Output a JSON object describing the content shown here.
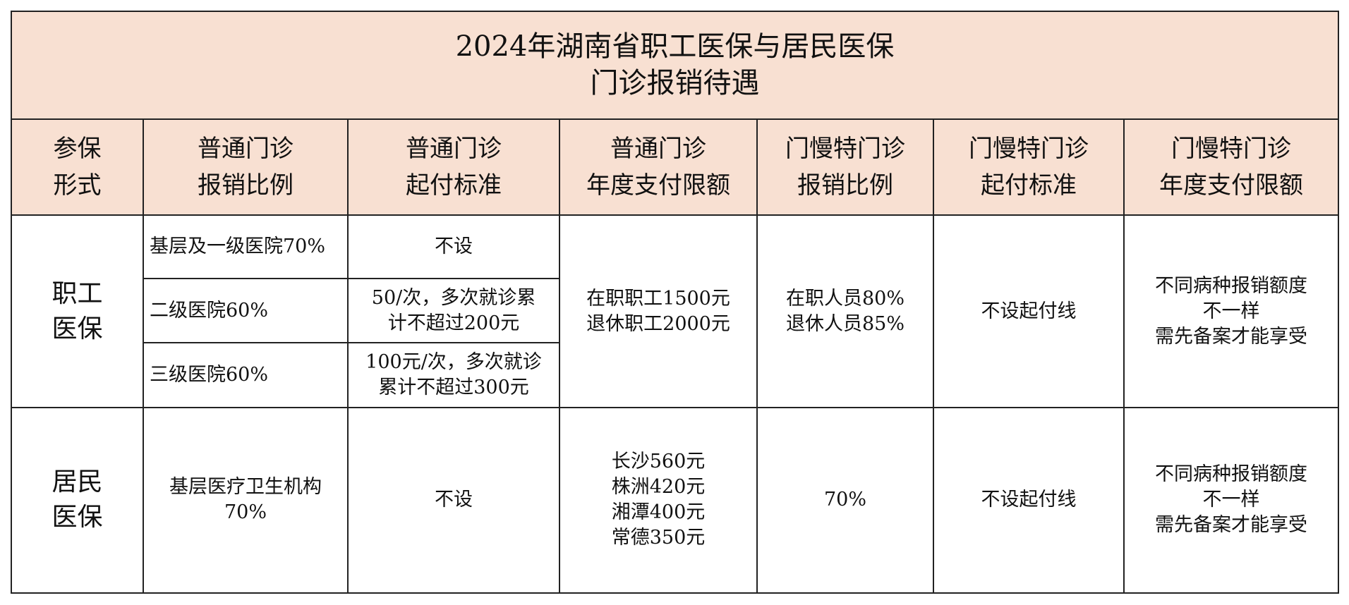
{
  "title": {
    "line1": "2024年湖南省职工医保与居民医保",
    "line2": "门诊报销待遇"
  },
  "headers": [
    [
      "参保",
      "形式"
    ],
    [
      "普通门诊",
      "报销比例"
    ],
    [
      "普通门诊",
      "起付标准"
    ],
    [
      "普通门诊",
      "年度支付限额"
    ],
    [
      "门慢特门诊",
      "报销比例"
    ],
    [
      "门慢特门诊",
      "起付标准"
    ],
    [
      "门慢特门诊",
      "年度支付限额"
    ]
  ],
  "employee": {
    "label": [
      "职工",
      "医保"
    ],
    "rows": [
      {
        "ratio": "基层及一级医院70%",
        "threshold": [
          "不设"
        ]
      },
      {
        "ratio": "二级医院60%",
        "threshold": [
          "50/次，多次就诊累",
          "计不超过200元"
        ]
      },
      {
        "ratio": "三级医院60%",
        "threshold": [
          "100元/次，多次就诊",
          "累计不超过300元"
        ]
      }
    ],
    "annual_limit": [
      "在职职工1500元",
      "退休职工2000元"
    ],
    "chronic_ratio": [
      "在职人员80%",
      "退休人员85%"
    ],
    "chronic_threshold": "不设起付线",
    "chronic_limit": [
      "不同病种报销额度",
      "不一样",
      "需先备案才能享受"
    ]
  },
  "resident": {
    "label": [
      "居民",
      "医保"
    ],
    "ratio": [
      "基层医疗卫生机构",
      "70%"
    ],
    "threshold": "不设",
    "annual_limit": [
      "长沙560元",
      "株洲420元",
      "湘潭400元",
      "常德350元"
    ],
    "chronic_ratio": "70%",
    "chronic_threshold": "不设起付线",
    "chronic_limit": [
      "不同病种报销额度",
      "不一样",
      "需先备案才能享受"
    ]
  }
}
